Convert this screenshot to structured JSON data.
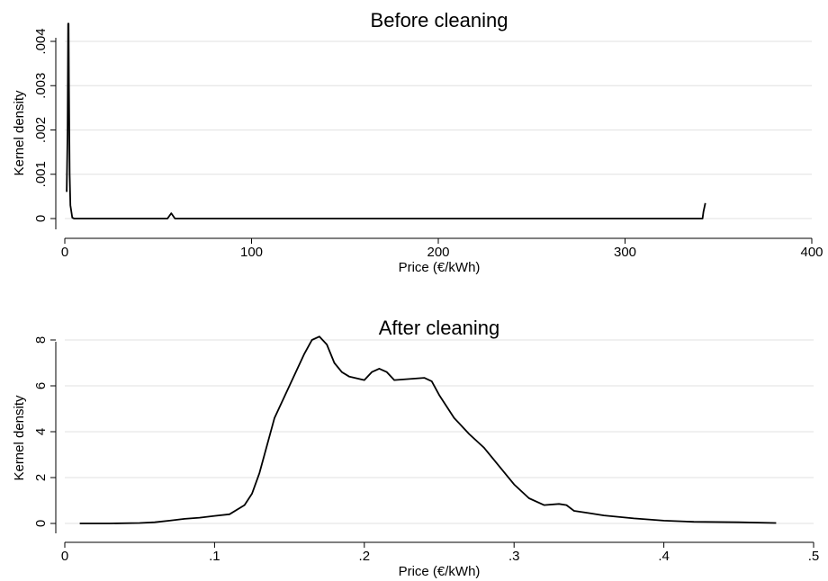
{
  "chart_data": [
    {
      "type": "line",
      "title": "Before cleaning",
      "xlabel": "Price (€/kWh)",
      "ylabel": "Kernel density",
      "xlim": [
        0,
        400
      ],
      "ylim": [
        0,
        0.0045
      ],
      "xticks": [
        0,
        100,
        200,
        300,
        400
      ],
      "xtick_labels": [
        "0",
        "100",
        "200",
        "300",
        "400"
      ],
      "yticks": [
        0,
        0.001,
        0.002,
        0.003,
        0.004
      ],
      "ytick_labels": [
        "0",
        ".001",
        ".002",
        ".003",
        ".004"
      ],
      "grid": true,
      "x": [
        1.0,
        1.5,
        1.8,
        2.0,
        2.2,
        2.6,
        3.0,
        4.0,
        5.0,
        55.0,
        57.0,
        59.0,
        100,
        200,
        300,
        341.5,
        342.0,
        343.0
      ],
      "y": [
        0.0006,
        0.002,
        0.0044,
        0.0044,
        0.003,
        0.001,
        0.0003,
        2e-05,
        0.0,
        0.0,
        0.00012,
        0.0,
        0.0,
        0.0,
        0.0,
        0.0,
        0.00015,
        0.00035
      ]
    },
    {
      "type": "line",
      "title": "After cleaning",
      "xlabel": "Price (€/kWh)",
      "ylabel": "Kernel density",
      "xlim": [
        0,
        0.5
      ],
      "ylim": [
        0,
        8.5
      ],
      "xticks": [
        0,
        0.1,
        0.2,
        0.3,
        0.4,
        0.5
      ],
      "xtick_labels": [
        "0",
        ".1",
        ".2",
        ".3",
        ".4",
        ".5"
      ],
      "yticks": [
        0,
        2,
        4,
        6,
        8
      ],
      "ytick_labels": [
        "0",
        "2",
        "4",
        "6",
        "8"
      ],
      "grid": true,
      "x": [
        0.01,
        0.03,
        0.05,
        0.06,
        0.07,
        0.08,
        0.09,
        0.1,
        0.11,
        0.12,
        0.125,
        0.13,
        0.14,
        0.15,
        0.16,
        0.165,
        0.17,
        0.175,
        0.18,
        0.185,
        0.19,
        0.2,
        0.205,
        0.21,
        0.215,
        0.22,
        0.23,
        0.24,
        0.245,
        0.25,
        0.26,
        0.27,
        0.28,
        0.29,
        0.3,
        0.31,
        0.32,
        0.33,
        0.335,
        0.34,
        0.35,
        0.36,
        0.38,
        0.4,
        0.42,
        0.45,
        0.475
      ],
      "y": [
        0.0,
        0.0,
        0.02,
        0.05,
        0.12,
        0.2,
        0.25,
        0.33,
        0.4,
        0.8,
        1.3,
        2.2,
        4.6,
        6.0,
        7.4,
        8.0,
        8.15,
        7.8,
        7.0,
        6.6,
        6.4,
        6.25,
        6.6,
        6.75,
        6.6,
        6.25,
        6.3,
        6.35,
        6.2,
        5.6,
        4.6,
        3.9,
        3.3,
        2.5,
        1.7,
        1.1,
        0.8,
        0.85,
        0.8,
        0.55,
        0.45,
        0.35,
        0.22,
        0.12,
        0.07,
        0.05,
        0.02
      ]
    }
  ]
}
